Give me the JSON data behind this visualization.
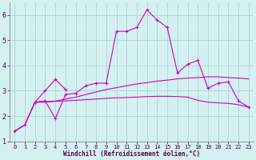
{
  "bg_color": "#d4f0f0",
  "line_color": "#cc00cc",
  "grid_color": "#a8d8d8",
  "xlabel": "Windchill (Refroidissement éolien,°C)",
  "xlim": [
    -0.5,
    23.5
  ],
  "ylim": [
    1.0,
    6.5
  ],
  "yticks": [
    1,
    2,
    3,
    4,
    5,
    6
  ],
  "xticks": [
    0,
    1,
    2,
    3,
    4,
    5,
    6,
    7,
    8,
    9,
    10,
    11,
    12,
    13,
    14,
    15,
    16,
    17,
    18,
    19,
    20,
    21,
    22,
    23
  ],
  "line1_x": [
    0,
    1,
    2,
    3,
    4,
    5,
    6,
    7,
    8,
    9,
    10,
    11,
    12,
    13,
    14,
    15,
    16,
    17,
    18,
    19,
    20,
    21,
    22,
    23
  ],
  "line1_y": [
    1.4,
    1.65,
    2.55,
    2.6,
    1.9,
    2.85,
    2.9,
    3.2,
    3.3,
    3.3,
    5.35,
    5.35,
    5.5,
    6.2,
    5.8,
    5.5,
    3.7,
    4.05,
    4.2,
    3.1,
    3.3,
    3.35,
    2.6,
    2.35
  ],
  "line2_x": [
    2,
    3,
    4,
    5
  ],
  "line2_y": [
    2.55,
    3.0,
    3.45,
    3.05
  ],
  "line3_x": [
    0,
    1,
    2,
    3,
    4,
    5,
    6,
    7,
    8,
    9,
    10,
    11,
    12,
    13,
    14,
    15,
    16,
    17,
    18,
    19,
    20,
    21,
    22,
    23
  ],
  "line3_y": [
    1.4,
    1.65,
    2.55,
    2.57,
    2.59,
    2.67,
    2.75,
    2.85,
    2.95,
    3.05,
    3.12,
    3.2,
    3.27,
    3.32,
    3.38,
    3.42,
    3.47,
    3.5,
    3.52,
    3.55,
    3.55,
    3.52,
    3.5,
    3.47
  ],
  "line4_x": [
    0,
    1,
    2,
    3,
    4,
    5,
    6,
    7,
    8,
    9,
    10,
    11,
    12,
    13,
    14,
    15,
    16,
    17,
    18,
    19,
    20,
    21,
    22,
    23
  ],
  "line4_y": [
    1.4,
    1.65,
    2.55,
    2.55,
    2.58,
    2.6,
    2.62,
    2.65,
    2.67,
    2.7,
    2.72,
    2.73,
    2.75,
    2.77,
    2.78,
    2.78,
    2.77,
    2.75,
    2.62,
    2.55,
    2.52,
    2.5,
    2.45,
    2.35
  ],
  "tick_fontsize": 5,
  "label_fontsize": 5.5
}
